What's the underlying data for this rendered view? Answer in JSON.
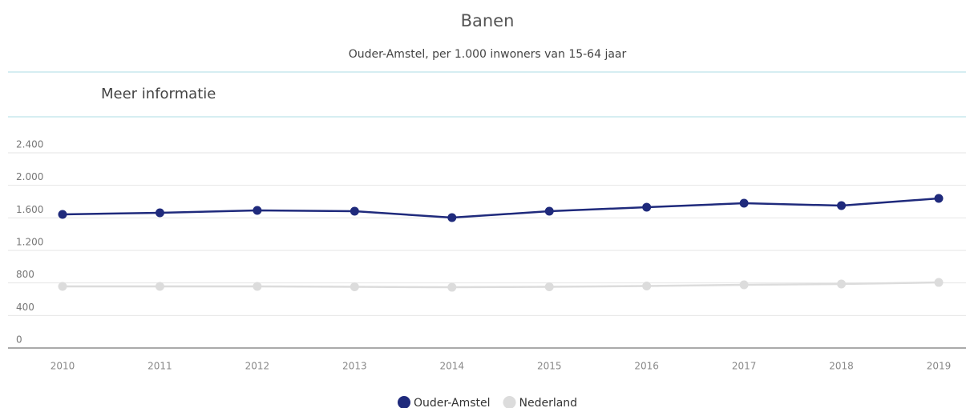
{
  "chart_data": {
    "type": "line",
    "title": "Banen",
    "subtitle": "Ouder-Amstel, per 1.000 inwoners van 15-64 jaar",
    "link": "Meer informatie",
    "categories": [
      "2010",
      "2011",
      "2012",
      "2013",
      "2014",
      "2015",
      "2016",
      "2017",
      "2018",
      "2019"
    ],
    "series": [
      {
        "name": "Ouder-Amstel",
        "color": "#1f2a7c",
        "values": [
          1643,
          1662,
          1692,
          1682,
          1603,
          1682,
          1731,
          1780,
          1751,
          1839
        ]
      },
      {
        "name": "Nederland",
        "color": "#dcdcdc",
        "values": [
          757,
          757,
          757,
          752,
          747,
          752,
          762,
          777,
          787,
          806
        ]
      }
    ],
    "ylim": [
      0,
      2400
    ],
    "yticks": [
      0,
      400,
      800,
      {
        "value": 1200,
        "label": "1.200"
      },
      {
        "value": 1600,
        "label": "1.600"
      },
      {
        "value": 2000,
        "label": "2.000"
      },
      {
        "value": 2400,
        "label": "2.400"
      }
    ],
    "grid": true,
    "legend": "bottom"
  }
}
